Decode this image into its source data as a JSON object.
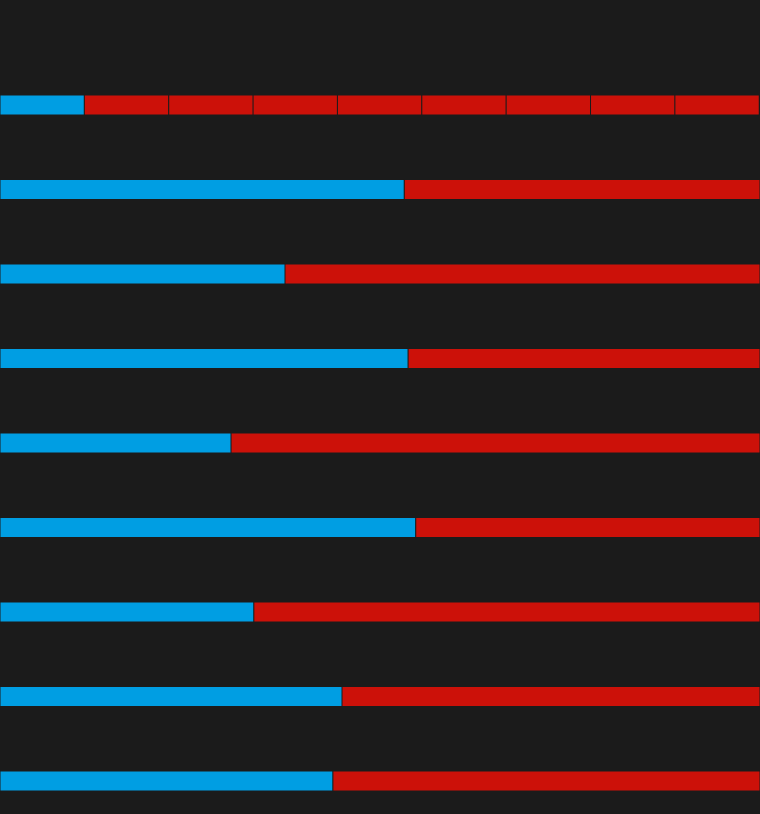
{
  "chart_data": {
    "type": "stacked-bar",
    "xlim": [
      0,
      100
    ],
    "segment_colors": [
      "#009ee3",
      "#cc1109"
    ],
    "bars": [
      {
        "values": [
          11.1,
          11.1,
          11.1,
          11.1,
          11.1,
          11.1,
          11.1,
          11.1,
          11.1
        ]
      },
      {
        "values": [
          53.2,
          46.8
        ]
      },
      {
        "values": [
          37.5,
          62.5
        ]
      },
      {
        "values": [
          53.7,
          46.3
        ]
      },
      {
        "values": [
          30.4,
          69.6
        ]
      },
      {
        "values": [
          54.7,
          45.3
        ]
      },
      {
        "values": [
          33.4,
          66.6
        ]
      },
      {
        "values": [
          45.0,
          55.0
        ]
      },
      {
        "values": [
          43.8,
          56.2
        ]
      }
    ]
  }
}
